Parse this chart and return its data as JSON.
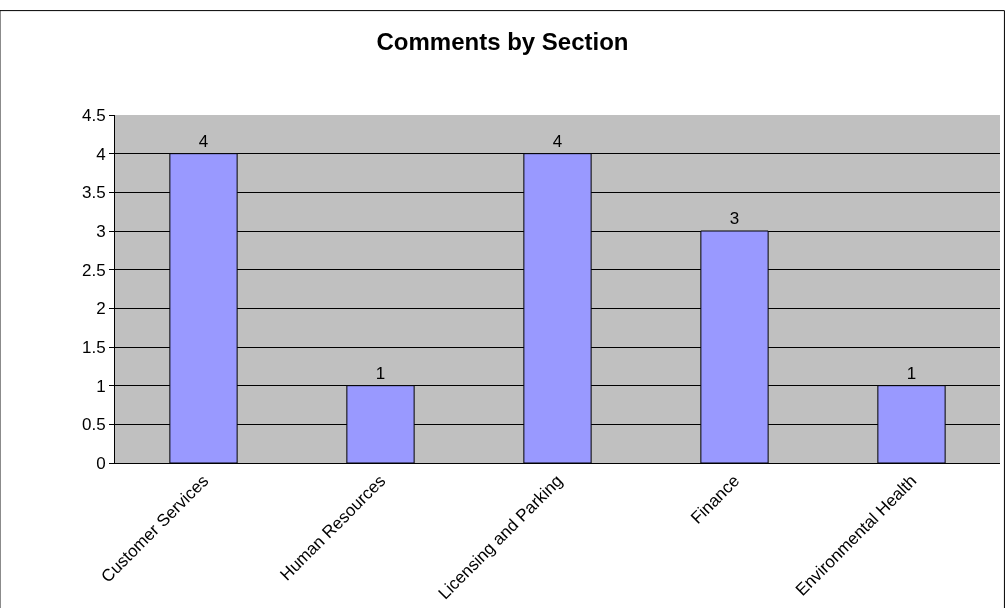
{
  "chart_data": {
    "type": "bar",
    "title": "Comments by Section",
    "categories": [
      "Customer Services",
      "Human Resources",
      "Licensing and Parking",
      "Finance",
      "Environmental Health"
    ],
    "values": [
      4,
      1,
      4,
      3,
      1
    ],
    "color": "#9999ff",
    "data_labels": true,
    "ylim": [
      0,
      4.5
    ],
    "yticks": [
      0,
      0.5,
      1,
      1.5,
      2,
      2.5,
      3,
      3.5,
      4,
      4.5
    ],
    "grid": "y"
  }
}
